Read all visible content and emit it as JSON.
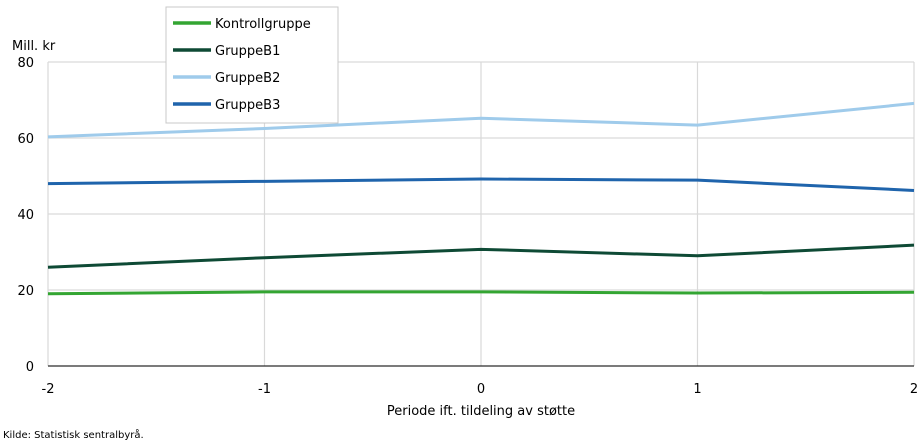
{
  "chart_data": {
    "type": "line",
    "title": "",
    "ylabel": "Mill. kr",
    "xlabel": "Periode ift. tildeling av støtte",
    "x": [
      -2,
      -1,
      0,
      1,
      2
    ],
    "xticks": [
      "-2",
      "-1",
      "0",
      "1",
      "2"
    ],
    "yticks": [
      "0",
      "20",
      "40",
      "60",
      "80"
    ],
    "xlim": [
      -2,
      2
    ],
    "ylim": [
      0,
      80
    ],
    "grid": true,
    "legend_position": "top-left",
    "series": [
      {
        "name": "Kontrollgruppe",
        "color": "#33a532",
        "values": [
          19.0,
          19.5,
          19.5,
          19.2,
          19.4
        ]
      },
      {
        "name": "GruppeB1",
        "color": "#0e4a35",
        "values": [
          26.0,
          28.5,
          30.7,
          29.0,
          31.8
        ]
      },
      {
        "name": "GruppeB2",
        "color": "#9fcbeb",
        "values": [
          60.3,
          62.5,
          65.2,
          63.4,
          69.1
        ]
      },
      {
        "name": "GruppeB3",
        "color": "#1f64ac",
        "values": [
          48.0,
          48.6,
          49.2,
          48.9,
          46.2
        ]
      }
    ]
  },
  "source": "Kilde: Statistisk sentralbyrå."
}
